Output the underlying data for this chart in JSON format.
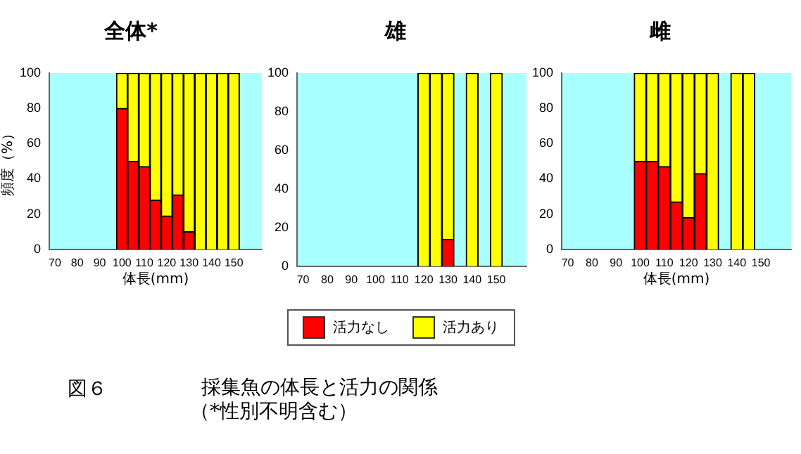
{
  "chart_data": [
    {
      "type": "bar",
      "title": "全体*",
      "ylabel": "頻度（%）",
      "xlabel": "体長(mm)",
      "stacked": true,
      "ylim": [
        0,
        100
      ],
      "yticks": [
        0,
        20,
        40,
        60,
        80,
        100
      ],
      "grid": false,
      "categories": [
        "70",
        null,
        "80",
        null,
        "90",
        null,
        "100",
        null,
        "110",
        null,
        "120",
        null,
        "130",
        null,
        "140",
        null,
        "150",
        null,
        null
      ],
      "series": [
        {
          "color": "#ff0000",
          "values": [
            null,
            null,
            null,
            null,
            null,
            null,
            80,
            50,
            47,
            28,
            19,
            31,
            10,
            0,
            0,
            0,
            0,
            null,
            null
          ]
        },
        {
          "color": "#ffff00",
          "values": [
            null,
            null,
            null,
            null,
            null,
            null,
            20,
            50,
            53,
            72,
            81,
            69,
            90,
            100,
            100,
            100,
            100,
            null,
            null
          ]
        }
      ],
      "annotations": [
        "図６",
        "採集魚の体長と活力の関係",
        "（*性別不明含む）"
      ]
    },
    {
      "type": "bar",
      "title": "雄",
      "stacked": true,
      "ylim": [
        0,
        100
      ],
      "yticks": [
        0,
        20,
        40,
        60,
        80,
        100
      ],
      "grid": false,
      "legend": "bottom",
      "categories": [
        "70",
        null,
        "80",
        null,
        "90",
        null,
        "100",
        null,
        "110",
        null,
        "120",
        null,
        "130",
        null,
        "140",
        null,
        "150",
        null,
        null
      ],
      "series": [
        {
          "name": "活力なし",
          "color": "#ff0000",
          "values": [
            null,
            null,
            null,
            null,
            null,
            null,
            null,
            null,
            null,
            null,
            0,
            0,
            14,
            null,
            0,
            null,
            0,
            null,
            null
          ]
        },
        {
          "name": "活力あり",
          "color": "#ffff00",
          "values": [
            null,
            null,
            null,
            null,
            null,
            null,
            null,
            null,
            null,
            null,
            100,
            100,
            86,
            null,
            100,
            null,
            100,
            null,
            null
          ]
        }
      ]
    },
    {
      "type": "bar",
      "title": "雌",
      "xlabel": "体長(mm)",
      "stacked": true,
      "ylim": [
        0,
        100
      ],
      "yticks": [
        0,
        20,
        40,
        60,
        80,
        100
      ],
      "grid": false,
      "categories": [
        "70",
        null,
        "80",
        null,
        "90",
        null,
        "100",
        null,
        "110",
        null,
        "120",
        null,
        "130",
        null,
        "140",
        null,
        "150",
        null,
        null
      ],
      "series": [
        {
          "color": "#ff0000",
          "values": [
            null,
            null,
            null,
            null,
            null,
            null,
            50,
            50,
            47,
            27,
            18,
            43,
            0,
            null,
            0,
            0,
            null,
            null,
            null
          ]
        },
        {
          "color": "#ffff00",
          "values": [
            null,
            null,
            null,
            null,
            null,
            null,
            50,
            50,
            53,
            73,
            82,
            57,
            100,
            null,
            100,
            100,
            null,
            null,
            null
          ]
        }
      ]
    }
  ]
}
